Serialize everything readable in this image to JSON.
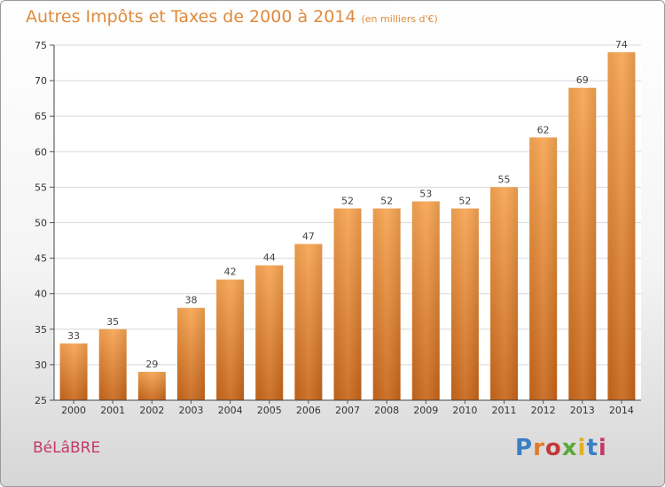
{
  "title": "Autres Impôts et Taxes de 2000 à 2014",
  "unit_note": "(en milliers d'€)",
  "town": "BéLâBRE",
  "logo": {
    "text": "Proxiti",
    "colors": [
      "#3a7fc4",
      "#e07a2a",
      "#c23a3a",
      "#5aa83a",
      "#e0b020",
      "#3a7fc4",
      "#c23a6a"
    ]
  },
  "colors": {
    "bar_light": "#f7a552",
    "bar_dark": "#c8661a",
    "title": "#e08a3c",
    "town": "#c23a6a"
  },
  "chart_data": {
    "type": "bar",
    "categories": [
      "2000",
      "2001",
      "2002",
      "2003",
      "2004",
      "2005",
      "2006",
      "2007",
      "2008",
      "2009",
      "2010",
      "2011",
      "2012",
      "2013",
      "2014"
    ],
    "values": [
      33,
      35,
      29,
      38,
      42,
      44,
      47,
      52,
      52,
      53,
      52,
      55,
      62,
      69,
      74
    ],
    "ylim": [
      25,
      75
    ],
    "yticks": [
      25,
      30,
      35,
      40,
      45,
      50,
      55,
      60,
      65,
      70,
      75
    ],
    "grid": true
  }
}
